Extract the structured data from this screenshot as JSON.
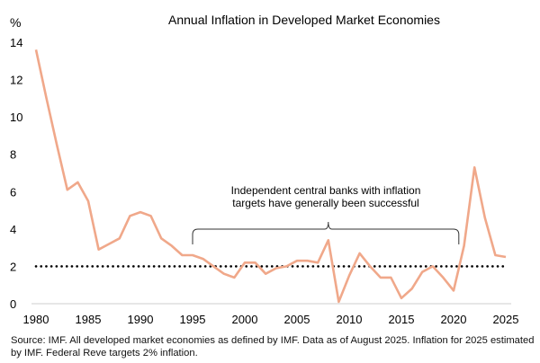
{
  "chart_data": {
    "type": "line",
    "title": "Annual Inflation in Developed Market Economies",
    "ylabel": "%",
    "xlabel": "",
    "ylim": [
      0,
      14
    ],
    "xlim": [
      1980,
      2025
    ],
    "yticks": [
      "0",
      "2",
      "4",
      "6",
      "8",
      "10",
      "12",
      "14"
    ],
    "xticks": [
      "1980",
      "1985",
      "1990",
      "1995",
      "2000",
      "2005",
      "2010",
      "2015",
      "2020",
      "2025"
    ],
    "grid": false,
    "series": [
      {
        "name": "Inflation",
        "color": "#f0a88a",
        "x": [
          1980,
          1981,
          1982,
          1983,
          1984,
          1985,
          1986,
          1987,
          1988,
          1989,
          1990,
          1991,
          1992,
          1993,
          1994,
          1995,
          1996,
          1997,
          1998,
          1999,
          2000,
          2001,
          2002,
          2003,
          2004,
          2005,
          2006,
          2007,
          2008,
          2009,
          2010,
          2011,
          2012,
          2013,
          2014,
          2015,
          2016,
          2017,
          2018,
          2019,
          2020,
          2021,
          2022,
          2023,
          2024,
          2025
        ],
        "values": [
          13.6,
          11.0,
          8.5,
          6.1,
          6.5,
          5.5,
          2.9,
          3.2,
          3.5,
          4.7,
          4.9,
          4.7,
          3.5,
          3.1,
          2.6,
          2.6,
          2.4,
          2.0,
          1.6,
          1.4,
          2.2,
          2.2,
          1.6,
          1.9,
          2.0,
          2.3,
          2.3,
          2.2,
          3.4,
          0.1,
          1.5,
          2.7,
          2.0,
          1.4,
          1.4,
          0.3,
          0.8,
          1.7,
          2.0,
          1.4,
          0.7,
          3.1,
          7.3,
          4.6,
          2.6,
          2.5
        ]
      }
    ],
    "reference_line": {
      "value": 2,
      "style": "dotted",
      "color": "#000000"
    },
    "annotation": {
      "lines": [
        "Independent central banks with inflation",
        "targets have generally been successful"
      ],
      "span": [
        1995,
        2020.5
      ]
    }
  },
  "footer": {
    "source": "Source: IMF. All developed market economies as defined by IMF. Data as of August 2025. Inflation for 2025 estimated by IMF. Federal Reve targets 2% inflation."
  }
}
